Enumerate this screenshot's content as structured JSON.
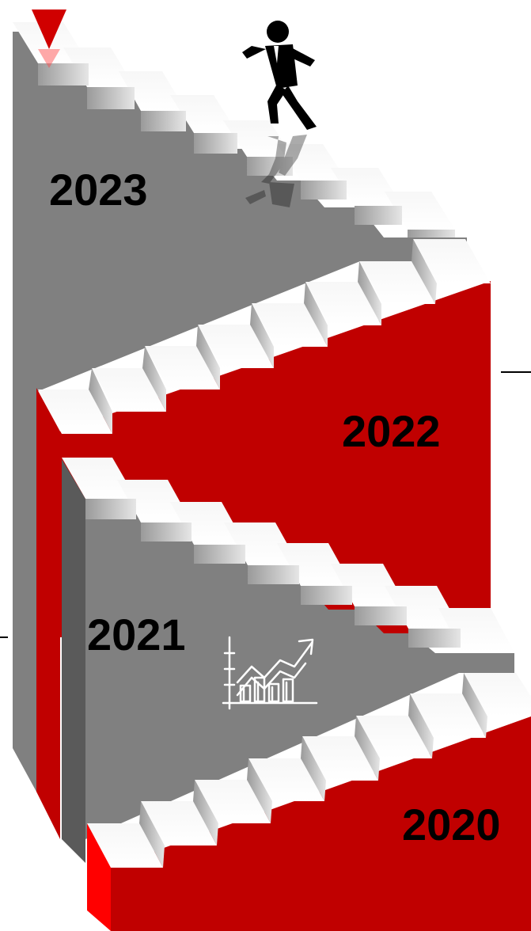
{
  "stairs": [
    {
      "year": "2023",
      "color": "#808080"
    },
    {
      "year": "2022",
      "color": "#c00000"
    },
    {
      "year": "2021",
      "color": "#808080"
    },
    {
      "year": "2020",
      "color": "#c00000"
    }
  ],
  "colors": {
    "red": "#c00000",
    "bright_red": "#ff0000",
    "gray": "#808080",
    "dark_gray": "#5a5a5a",
    "step_white": "#ffffff"
  },
  "icons": {
    "top_marker": "red-triangle-marker-icon",
    "runner": "running-businessman-icon",
    "growth": "growth-chart-icon"
  }
}
